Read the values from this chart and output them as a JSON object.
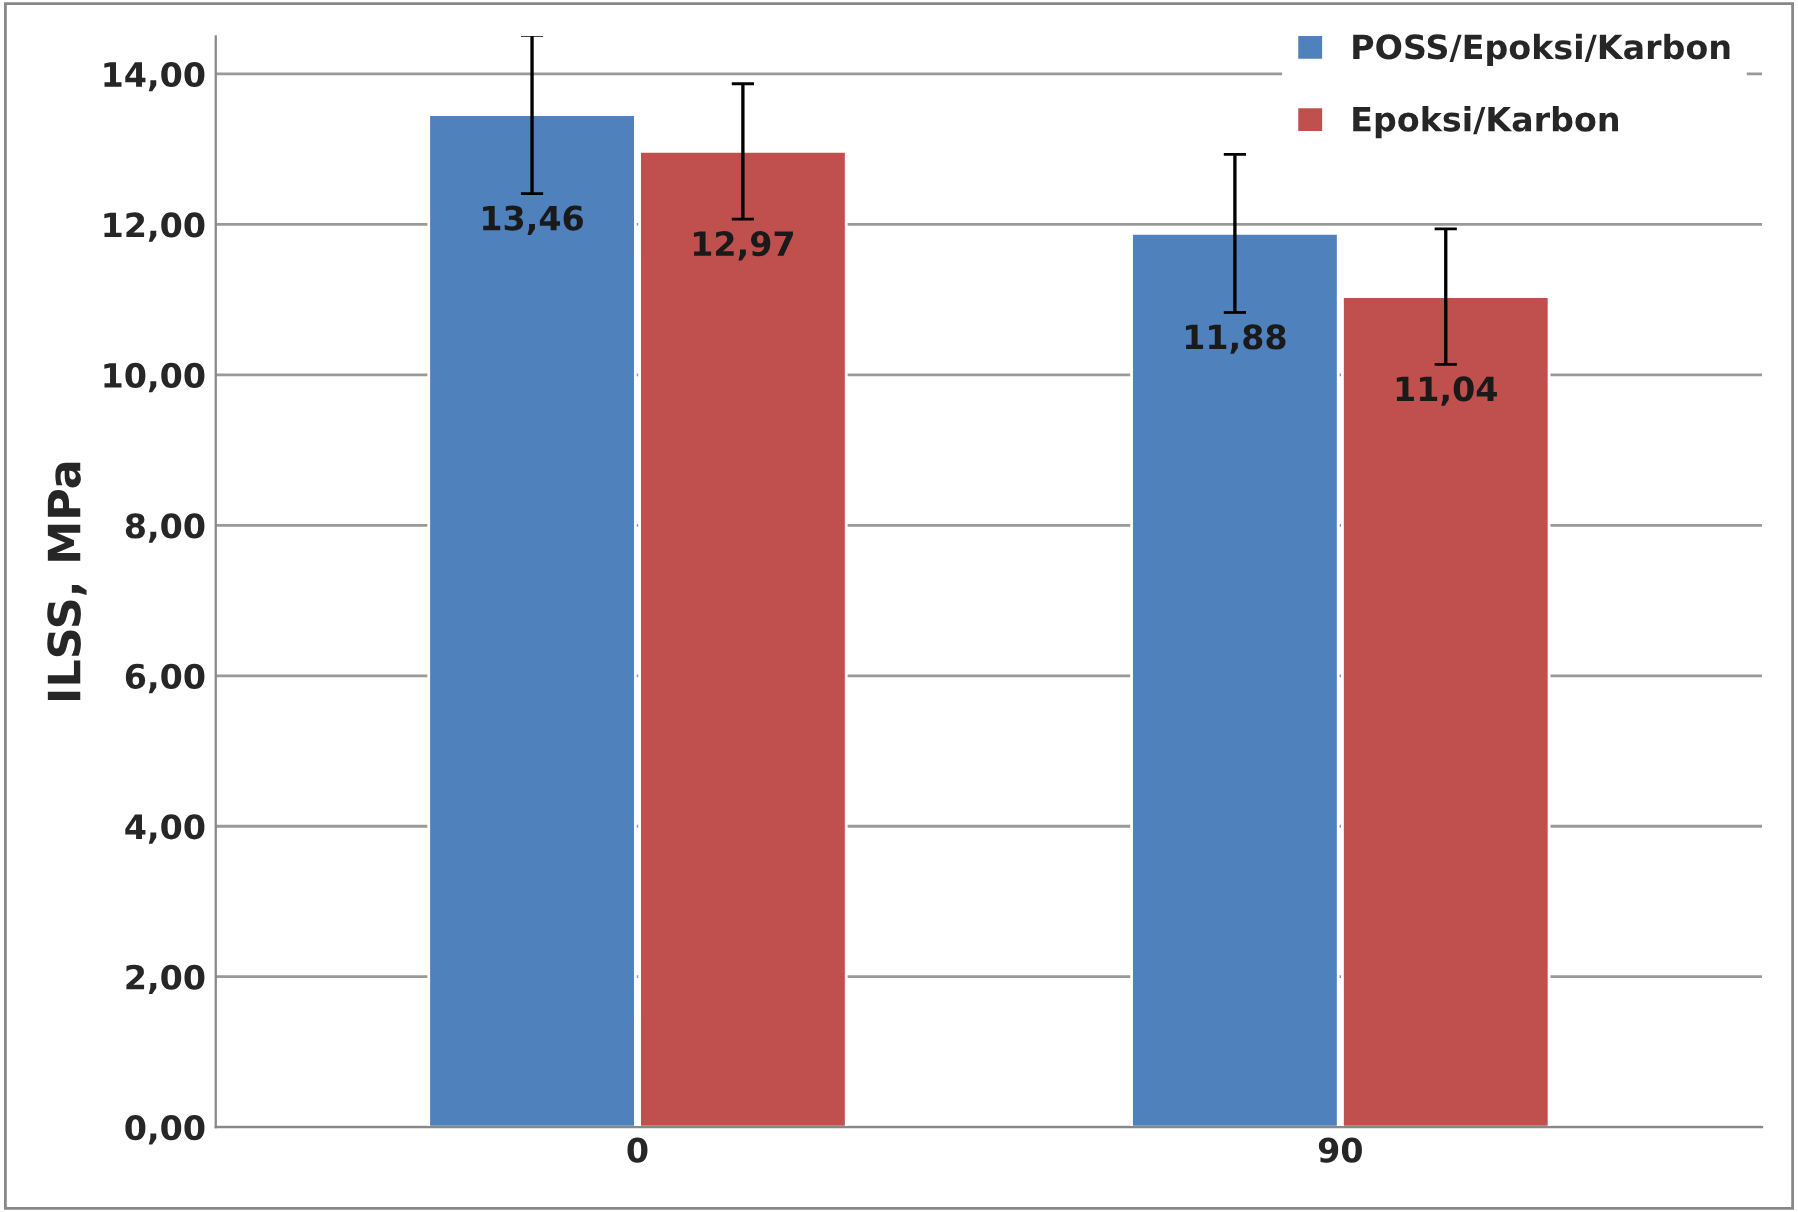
{
  "chart_data": {
    "type": "bar",
    "ylabel": "ILSS, MPa",
    "categories": [
      "0",
      "90"
    ],
    "series": [
      {
        "name": "POSS/Epoksi/Karbon",
        "color": "#4f81bd",
        "values": [
          13.46,
          11.88
        ],
        "errors": [
          1.05,
          1.05
        ],
        "value_labels": [
          "13,46",
          "11,88"
        ]
      },
      {
        "name": "Epoksi/Karbon",
        "color": "#c0504d",
        "values": [
          12.97,
          11.04
        ],
        "errors": [
          0.9,
          0.9
        ],
        "value_labels": [
          "12,97",
          "11,04"
        ]
      }
    ],
    "ylim": [
      0,
      14.5
    ],
    "yticks": [
      {
        "value": 0,
        "label": "0,00"
      },
      {
        "value": 2,
        "label": "2,00"
      },
      {
        "value": 4,
        "label": "4,00"
      },
      {
        "value": 6,
        "label": "6,00"
      },
      {
        "value": 8,
        "label": "8,00"
      },
      {
        "value": 10,
        "label": "10,00"
      },
      {
        "value": 12,
        "label": "12,00"
      },
      {
        "value": 14,
        "label": "14,00"
      }
    ],
    "grid": "y",
    "legend": "top right"
  }
}
